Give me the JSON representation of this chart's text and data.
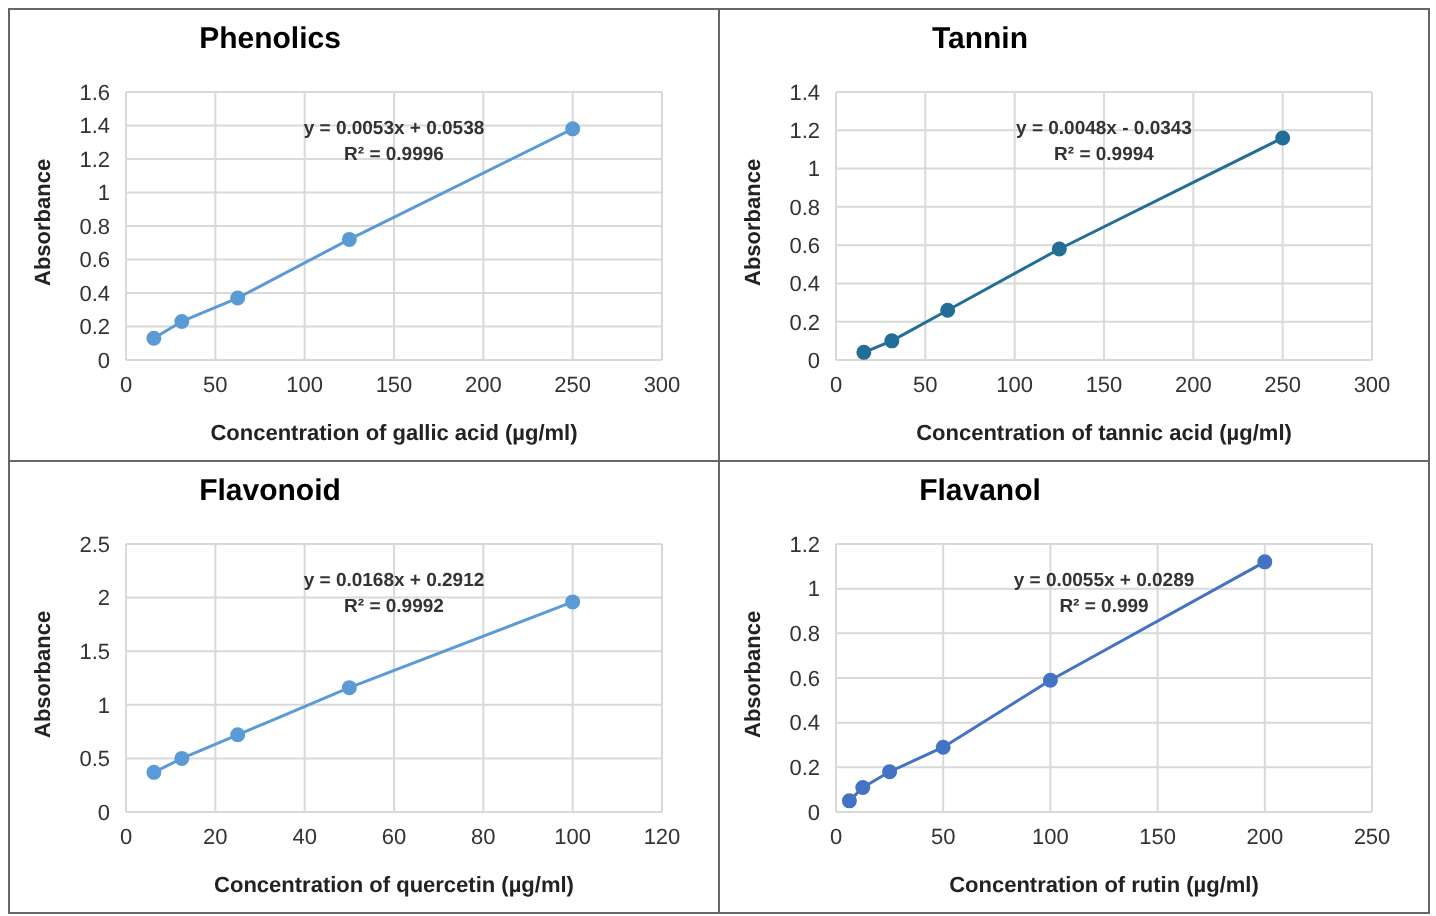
{
  "chart_data": [
    {
      "type": "line",
      "title": "Phenolics",
      "xlabel": "Concentration of gallic acid (µg/ml)",
      "ylabel": "Absorbance",
      "x": [
        15.6,
        31.25,
        62.5,
        125,
        250
      ],
      "series": [
        {
          "color": "#5b9bd5",
          "values": [
            0.13,
            0.23,
            0.37,
            0.72,
            1.38
          ]
        }
      ],
      "xlim": [
        0,
        300
      ],
      "xticks": [
        0,
        50,
        100,
        150,
        200,
        250,
        300
      ],
      "ylim": [
        0,
        1.6
      ],
      "yticks": [
        0,
        0.2,
        0.4,
        0.6,
        0.8,
        1,
        1.2,
        1.4,
        1.6
      ],
      "grid": true,
      "marker": "circle",
      "line_style": "solid",
      "annotations": [
        "y = 0.0053x + 0.0538",
        "R² = 0.9996"
      ]
    },
    {
      "type": "line",
      "title": "Tannin",
      "xlabel": "Concentration of tannic acid (µg/ml)",
      "ylabel": "Absorbance",
      "x": [
        15.6,
        31.25,
        62.5,
        125,
        250
      ],
      "series": [
        {
          "color": "#236e96",
          "values": [
            0.04,
            0.1,
            0.26,
            0.58,
            1.16
          ]
        }
      ],
      "xlim": [
        0,
        300
      ],
      "xticks": [
        0,
        50,
        100,
        150,
        200,
        250,
        300
      ],
      "ylim": [
        0,
        1.4
      ],
      "yticks": [
        0,
        0.2,
        0.4,
        0.6,
        0.8,
        1,
        1.2,
        1.4
      ],
      "grid": true,
      "marker": "circle",
      "line_style": "solid",
      "annotations": [
        "y = 0.0048x - 0.0343",
        "R² = 0.9994"
      ]
    },
    {
      "type": "line",
      "title": "Flavonoid",
      "xlabel": "Concentration of quercetin (µg/ml)",
      "ylabel": "Absorbance",
      "x": [
        6.25,
        12.5,
        25,
        50,
        100
      ],
      "series": [
        {
          "color": "#5b9bd5",
          "values": [
            0.37,
            0.5,
            0.72,
            1.16,
            1.96
          ]
        }
      ],
      "xlim": [
        0,
        120
      ],
      "xticks": [
        0,
        20,
        40,
        60,
        80,
        100,
        120
      ],
      "ylim": [
        0,
        2.5
      ],
      "yticks": [
        0,
        0.5,
        1,
        1.5,
        2,
        2.5
      ],
      "grid": true,
      "marker": "circle",
      "line_style": "solid",
      "annotations": [
        "y = 0.0168x + 0.2912",
        "R² = 0.9992"
      ]
    },
    {
      "type": "line",
      "title": "Flavanol",
      "xlabel": "Concentration of rutin (µg/ml)",
      "ylabel": "Absorbance",
      "x": [
        6.25,
        12.5,
        25,
        50,
        100,
        200
      ],
      "series": [
        {
          "color": "#4472c4",
          "values": [
            0.05,
            0.11,
            0.18,
            0.29,
            0.59,
            1.12
          ]
        }
      ],
      "xlim": [
        0,
        250
      ],
      "xticks": [
        0,
        50,
        100,
        150,
        200,
        250
      ],
      "ylim": [
        0,
        1.2
      ],
      "yticks": [
        0,
        0.2,
        0.4,
        0.6,
        0.8,
        1,
        1.2
      ],
      "grid": true,
      "marker": "circle",
      "line_style": "solid",
      "annotations": [
        "y = 0.0055x + 0.0289",
        "R² = 0.999"
      ]
    }
  ]
}
